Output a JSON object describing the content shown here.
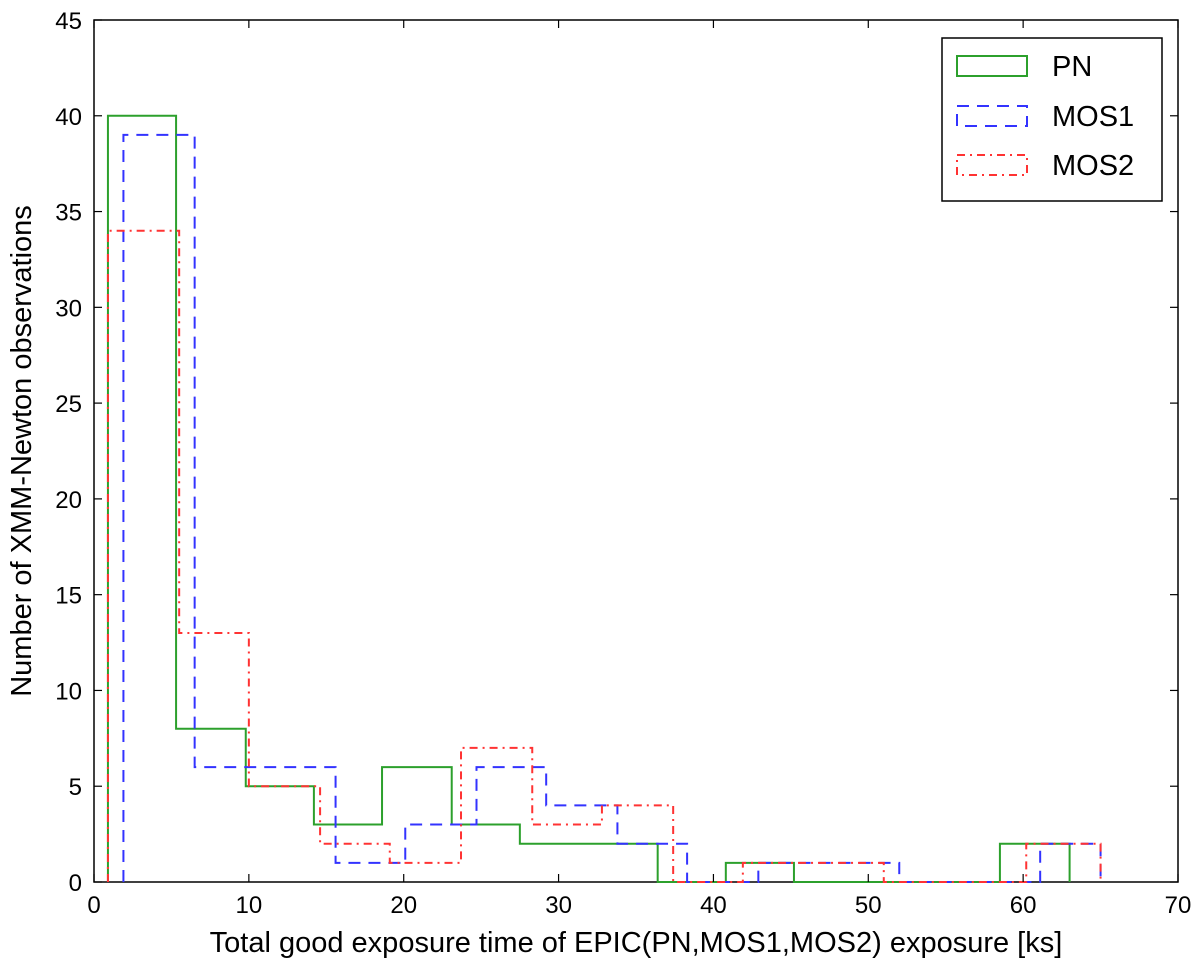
{
  "chart_data": {
    "type": "histogram-step",
    "xlabel": "Total good exposure time of EPIC(PN,MOS1,MOS2) exposure [ks]",
    "ylabel": "Number of XMM-Newton observations",
    "xlim": [
      0,
      70
    ],
    "ylim": [
      0,
      45
    ],
    "xticks": [
      0,
      10,
      20,
      30,
      40,
      50,
      60,
      70
    ],
    "yticks": [
      0,
      5,
      10,
      15,
      20,
      25,
      30,
      35,
      40,
      45
    ],
    "legend_position": "top-right",
    "series": [
      {
        "name": "PN",
        "color": "#2ca02c",
        "dash": "solid",
        "edges": [
          0.9,
          5.3,
          9.8,
          14.2,
          18.6,
          23.1,
          27.5,
          31.9,
          36.4,
          40.8,
          45.2,
          49.7,
          54.1,
          58.5,
          63.0
        ],
        "counts": [
          40,
          8,
          5,
          3,
          6,
          3,
          2,
          2,
          0,
          1,
          0,
          0,
          0,
          2
        ]
      },
      {
        "name": "MOS1",
        "color": "#3333ff",
        "dash": "dashed",
        "edges": [
          1.9,
          6.5,
          11.0,
          15.6,
          20.1,
          24.7,
          29.2,
          33.8,
          38.3,
          42.9,
          47.4,
          52.0,
          56.5,
          61.1,
          65.0
        ],
        "counts": [
          39,
          6,
          6,
          1,
          3,
          6,
          4,
          2,
          0,
          1,
          1,
          0,
          0,
          2
        ]
      },
      {
        "name": "MOS2",
        "color": "#ff3333",
        "dash": "dashdot",
        "edges": [
          0.9,
          5.5,
          10.0,
          14.6,
          19.1,
          23.7,
          28.3,
          32.8,
          37.4,
          41.9,
          46.5,
          51.0,
          55.6,
          60.2,
          65.0
        ],
        "counts": [
          34,
          13,
          5,
          2,
          1,
          7,
          3,
          4,
          0,
          1,
          1,
          0,
          0,
          2
        ]
      }
    ]
  }
}
